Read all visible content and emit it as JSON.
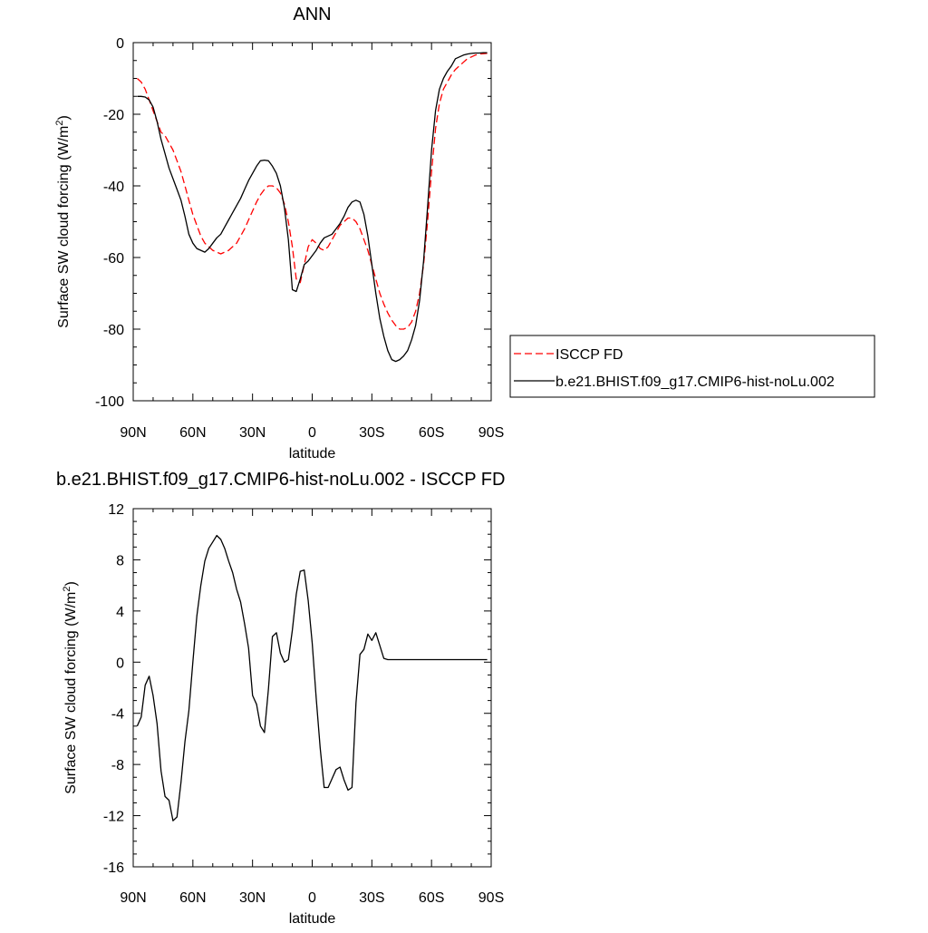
{
  "chart_data": [
    {
      "type": "line",
      "title": "ANN",
      "xlabel": "latitude",
      "ylabel": "Surface SW cloud forcing (W/m",
      "ylabel_sup": "2",
      "ylabel_end": ")",
      "xlim": [
        90,
        -90
      ],
      "ylim": [
        -100,
        0
      ],
      "xticks": [
        90,
        60,
        30,
        0,
        -30,
        -60,
        -90
      ],
      "xticklabels": [
        "90N",
        "60N",
        "30N",
        "0",
        "30S",
        "60S",
        "90S"
      ],
      "yticks": [
        0,
        -20,
        -40,
        -60,
        -80,
        -100
      ],
      "yticklabels": [
        "0",
        "-20",
        "-40",
        "-60",
        "-80",
        "-100"
      ],
      "legend_position": "right",
      "series": [
        {
          "name": "ISCCP FD",
          "color": "#ff0000",
          "dash": "dashed",
          "x": [
            88,
            86,
            84,
            82,
            80,
            78,
            76,
            74,
            72,
            70,
            68,
            66,
            64,
            62,
            60,
            58,
            56,
            54,
            52,
            50,
            48,
            46,
            44,
            42,
            40,
            38,
            36,
            34,
            32,
            30,
            28,
            26,
            24,
            22,
            20,
            18,
            16,
            14,
            12,
            10,
            8,
            6,
            4,
            2,
            0,
            -2,
            -4,
            -6,
            -8,
            -10,
            -12,
            -14,
            -16,
            -18,
            -20,
            -22,
            -24,
            -26,
            -28,
            -30,
            -32,
            -34,
            -36,
            -38,
            -40,
            -42,
            -44,
            -46,
            -48,
            -50,
            -52,
            -54,
            -56,
            -58,
            -60,
            -62,
            -64,
            -66,
            -68,
            -70,
            -72,
            -74,
            -76,
            -78,
            -80,
            -82,
            -84,
            -86,
            -88
          ],
          "y": [
            -10,
            -11,
            -13,
            -16,
            -19,
            -22,
            -25,
            -26,
            -28,
            -30,
            -33,
            -36,
            -40,
            -44,
            -48,
            -51,
            -54,
            -56,
            -57,
            -58,
            -58.5,
            -59,
            -58.5,
            -58,
            -57,
            -56,
            -54,
            -52,
            -49.5,
            -47,
            -44.5,
            -42.5,
            -41,
            -40,
            -40,
            -40.5,
            -42,
            -45,
            -50,
            -57,
            -66,
            -67,
            -62,
            -57,
            -55,
            -56,
            -57.5,
            -58,
            -57,
            -55,
            -53,
            -51,
            -50,
            -49,
            -49,
            -50,
            -52,
            -55,
            -58,
            -62,
            -66,
            -70,
            -73,
            -75.5,
            -77.5,
            -79,
            -80,
            -80,
            -79.5,
            -78,
            -75,
            -70,
            -62,
            -50,
            -36,
            -24,
            -17,
            -13,
            -11,
            -9,
            -7.5,
            -6.5,
            -5.5,
            -4.5,
            -4,
            -3.5,
            -3.2,
            -3.1,
            -3
          ]
        },
        {
          "name": "b.e21.BHIST.f09_g17.CMIP6-hist-noLu.002",
          "color": "#000000",
          "dash": "solid",
          "x": [
            88,
            86,
            84,
            82,
            80,
            78,
            76,
            74,
            72,
            70,
            68,
            66,
            64,
            62,
            60,
            58,
            56,
            54,
            52,
            50,
            48,
            46,
            44,
            42,
            40,
            38,
            36,
            34,
            32,
            30,
            28,
            26,
            24,
            22,
            20,
            18,
            16,
            14,
            12,
            10,
            8,
            6,
            4,
            2,
            0,
            -2,
            -4,
            -6,
            -8,
            -10,
            -12,
            -14,
            -16,
            -18,
            -20,
            -22,
            -24,
            -26,
            -28,
            -30,
            -32,
            -34,
            -36,
            -38,
            -40,
            -42,
            -44,
            -46,
            -48,
            -50,
            -52,
            -54,
            -56,
            -58,
            -60,
            -62,
            -64,
            -66,
            -68,
            -70,
            -72,
            -74,
            -76,
            -78,
            -80,
            -82,
            -84,
            -86,
            -88
          ],
          "y": [
            -15,
            -15,
            -15.2,
            -16,
            -18,
            -22,
            -27,
            -31,
            -35,
            -38,
            -41,
            -44,
            -48.5,
            -53.5,
            -56,
            -57.5,
            -58,
            -58.5,
            -57.5,
            -56,
            -54.5,
            -53.5,
            -51.5,
            -49.5,
            -47.5,
            -45.5,
            -43.5,
            -41,
            -38.5,
            -36.5,
            -34.5,
            -33,
            -32.8,
            -33,
            -34.5,
            -36.5,
            -40,
            -46,
            -55,
            -69,
            -69.5,
            -66,
            -62,
            -61,
            -59.5,
            -58,
            -56,
            -54.5,
            -54,
            -53.5,
            -52,
            -50.5,
            -48.5,
            -46,
            -44.5,
            -44,
            -44.5,
            -48,
            -54,
            -62,
            -70,
            -77,
            -82,
            -86,
            -88.5,
            -89,
            -88.5,
            -87.5,
            -86,
            -83,
            -79,
            -72,
            -61,
            -46,
            -30,
            -19,
            -13,
            -10,
            -8,
            -6.5,
            -4.5,
            -4,
            -3.5,
            -3.2,
            -3,
            -2.9,
            -2.9,
            -2.8,
            -2.8
          ]
        }
      ]
    },
    {
      "type": "line",
      "title": "b.e21.BHIST.f09_g17.CMIP6-hist-noLu.002 - ISCCP FD",
      "xlabel": "latitude",
      "ylabel": "Surface SW cloud forcing (W/m",
      "ylabel_sup": "2",
      "ylabel_end": ")",
      "xlim": [
        90,
        -90
      ],
      "ylim": [
        -16,
        12
      ],
      "xticks": [
        90,
        60,
        30,
        0,
        -30,
        -60,
        -90
      ],
      "xticklabels": [
        "90N",
        "60N",
        "30N",
        "0",
        "30S",
        "60S",
        "90S"
      ],
      "yticks": [
        12,
        8,
        4,
        0,
        -4,
        -8,
        -12,
        -16
      ],
      "yticklabels": [
        "12",
        "8",
        "4",
        "0",
        "-4",
        "-8",
        "-12",
        "-16"
      ],
      "series": [
        {
          "color": "#000000",
          "dash": "solid",
          "x": [
            88,
            86,
            84,
            82,
            80,
            78,
            76,
            74,
            72,
            70,
            68,
            66,
            64,
            62,
            60,
            58,
            56,
            54,
            52,
            50,
            48,
            46,
            44,
            42,
            40,
            38,
            36,
            34,
            32,
            30,
            28,
            26,
            24,
            22,
            20,
            18,
            16,
            14,
            12,
            10,
            8,
            6,
            4,
            2,
            0,
            -2,
            -4,
            -6,
            -8,
            -10,
            -12,
            -14,
            -16,
            -18,
            -20,
            -22,
            -24,
            -26,
            -28,
            -30,
            -32,
            -34,
            -36,
            -38,
            -40,
            -42,
            -44,
            -46,
            -48,
            -50,
            -52,
            -54,
            -56,
            -58,
            -60,
            -62,
            -64,
            -66,
            -68,
            -70,
            -72,
            -74,
            -76,
            -78,
            -80,
            -82,
            -84,
            -86,
            -88
          ],
          "y": [
            -5,
            -4.3,
            -1.8,
            -1.1,
            -2.6,
            -4.8,
            -8.5,
            -10.5,
            -10.8,
            -12.4,
            -12.1,
            -9.4,
            -6.2,
            -3.8,
            0,
            3.6,
            6,
            7.9,
            8.9,
            9.4,
            9.9,
            9.6,
            8.9,
            7.9,
            7.0,
            5.7,
            4.7,
            3.0,
            1.1,
            -2.6,
            -3.3,
            -5.0,
            -5.5,
            -2.1,
            2.0,
            2.3,
            0.7,
            0,
            0.2,
            2.5,
            5.3,
            7.1,
            7.2,
            4.8,
            1.5,
            -2.8,
            -6.7,
            -9.8,
            -9.8,
            -9.1,
            -8.4,
            -8.2,
            -9.2,
            -10,
            -9.8,
            -3.2,
            0.6,
            1.0,
            2.2,
            1.7,
            2.3,
            1.3,
            0.3,
            0.2,
            0.2,
            0.2,
            0.2,
            0.2,
            0.2,
            0.2,
            0.2,
            0.2,
            0.2,
            0.2,
            0.2,
            0.2,
            0.2,
            0.2,
            0.2,
            0.2,
            0.2,
            0.2,
            0.2,
            0.2,
            0.2,
            0.2,
            0.2,
            0.2,
            0.2
          ]
        }
      ]
    }
  ]
}
